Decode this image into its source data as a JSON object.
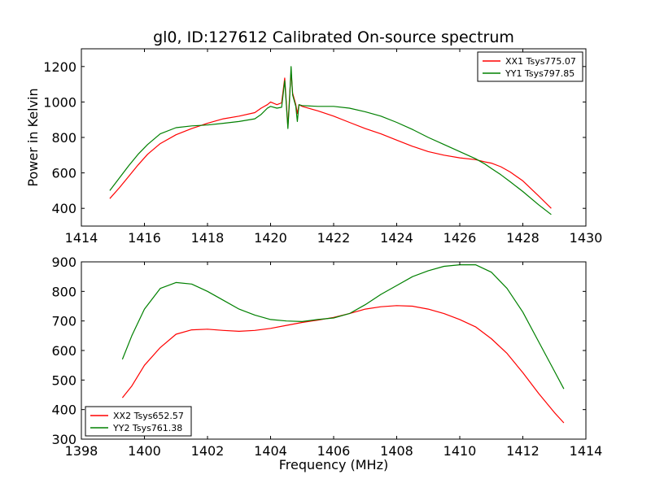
{
  "chart_data": [
    {
      "type": "line",
      "title": "gl0, ID:127612 Calibrated On-source spectrum",
      "xlabel": "",
      "ylabel": "Power in Kelvin",
      "xlim": [
        1414,
        1430
      ],
      "ylim": [
        300,
        1300
      ],
      "xticks": [
        1414,
        1416,
        1418,
        1420,
        1422,
        1424,
        1426,
        1428,
        1430
      ],
      "yticks": [
        400,
        600,
        800,
        1000,
        1200
      ],
      "grid": false,
      "legend_position": "top-right",
      "series": [
        {
          "name": "XX1 Tsys775.07",
          "color": "#ff0000",
          "x": [
            1414.9,
            1415.2,
            1415.5,
            1415.8,
            1416.1,
            1416.5,
            1417.0,
            1417.5,
            1418.0,
            1418.5,
            1419.0,
            1419.5,
            1419.7,
            1419.9,
            1420.0,
            1420.2,
            1420.35,
            1420.45,
            1420.55,
            1420.6,
            1420.65,
            1420.7,
            1420.8,
            1420.85,
            1420.9,
            1421.0,
            1421.5,
            1422.0,
            1422.5,
            1423.0,
            1423.5,
            1424.0,
            1424.5,
            1425.0,
            1425.5,
            1426.0,
            1426.5,
            1426.8,
            1427.0,
            1427.3,
            1427.6,
            1428.0,
            1428.5,
            1428.9
          ],
          "y": [
            455,
            515,
            580,
            645,
            705,
            765,
            815,
            850,
            880,
            905,
            920,
            940,
            965,
            985,
            1000,
            985,
            995,
            1135,
            860,
            1020,
            1170,
            1050,
            985,
            935,
            985,
            975,
            950,
            920,
            885,
            850,
            820,
            785,
            750,
            720,
            700,
            685,
            675,
            662,
            655,
            635,
            605,
            555,
            470,
            400
          ]
        },
        {
          "name": "YY1 Tsys797.85",
          "color": "#008000",
          "x": [
            1414.9,
            1415.2,
            1415.5,
            1415.8,
            1416.1,
            1416.5,
            1417.0,
            1417.5,
            1418.0,
            1418.5,
            1419.0,
            1419.5,
            1419.7,
            1419.9,
            1420.0,
            1420.2,
            1420.35,
            1420.45,
            1420.55,
            1420.6,
            1420.65,
            1420.7,
            1420.8,
            1420.85,
            1420.9,
            1421.0,
            1421.5,
            1422.0,
            1422.5,
            1423.0,
            1423.5,
            1424.0,
            1424.5,
            1425.0,
            1425.5,
            1426.0,
            1426.5,
            1426.8,
            1427.0,
            1427.3,
            1427.6,
            1428.0,
            1428.5,
            1428.9
          ],
          "y": [
            500,
            570,
            640,
            705,
            760,
            820,
            855,
            865,
            870,
            880,
            890,
            905,
            930,
            965,
            975,
            965,
            970,
            1120,
            850,
            1000,
            1200,
            1040,
            975,
            890,
            985,
            980,
            975,
            975,
            965,
            945,
            920,
            885,
            845,
            800,
            760,
            720,
            680,
            650,
            625,
            590,
            550,
            495,
            420,
            365
          ]
        }
      ]
    },
    {
      "type": "line",
      "title": "",
      "xlabel": "Frequency (MHz)",
      "ylabel": "",
      "xlim": [
        1398,
        1414
      ],
      "ylim": [
        300,
        900
      ],
      "xticks": [
        1398,
        1400,
        1402,
        1404,
        1406,
        1408,
        1410,
        1412,
        1414
      ],
      "yticks": [
        300,
        400,
        500,
        600,
        700,
        800,
        900
      ],
      "grid": false,
      "legend_position": "bottom-left",
      "series": [
        {
          "name": "XX2 Tsys652.57",
          "color": "#ff0000",
          "x": [
            1399.3,
            1399.6,
            1400.0,
            1400.5,
            1401.0,
            1401.5,
            1402.0,
            1402.5,
            1403.0,
            1403.5,
            1404.0,
            1404.5,
            1405.0,
            1405.5,
            1406.0,
            1406.5,
            1407.0,
            1407.5,
            1408.0,
            1408.5,
            1409.0,
            1409.5,
            1410.0,
            1410.5,
            1411.0,
            1411.5,
            1412.0,
            1412.5,
            1413.0,
            1413.3
          ],
          "y": [
            440,
            480,
            550,
            610,
            655,
            670,
            672,
            668,
            665,
            668,
            675,
            685,
            695,
            703,
            712,
            725,
            740,
            748,
            752,
            750,
            740,
            725,
            705,
            680,
            640,
            590,
            525,
            455,
            390,
            355
          ]
        },
        {
          "name": "YY2 Tsys761.38",
          "color": "#008000",
          "x": [
            1399.3,
            1399.6,
            1400.0,
            1400.5,
            1401.0,
            1401.5,
            1402.0,
            1402.5,
            1403.0,
            1403.5,
            1404.0,
            1404.5,
            1405.0,
            1405.5,
            1406.0,
            1406.5,
            1407.0,
            1407.5,
            1408.0,
            1408.5,
            1409.0,
            1409.5,
            1410.0,
            1410.5,
            1411.0,
            1411.5,
            1412.0,
            1412.5,
            1413.0,
            1413.3
          ],
          "y": [
            570,
            650,
            740,
            810,
            830,
            825,
            800,
            770,
            740,
            720,
            705,
            700,
            698,
            705,
            710,
            725,
            755,
            790,
            820,
            850,
            870,
            885,
            890,
            890,
            865,
            810,
            730,
            630,
            530,
            470
          ]
        }
      ]
    }
  ]
}
